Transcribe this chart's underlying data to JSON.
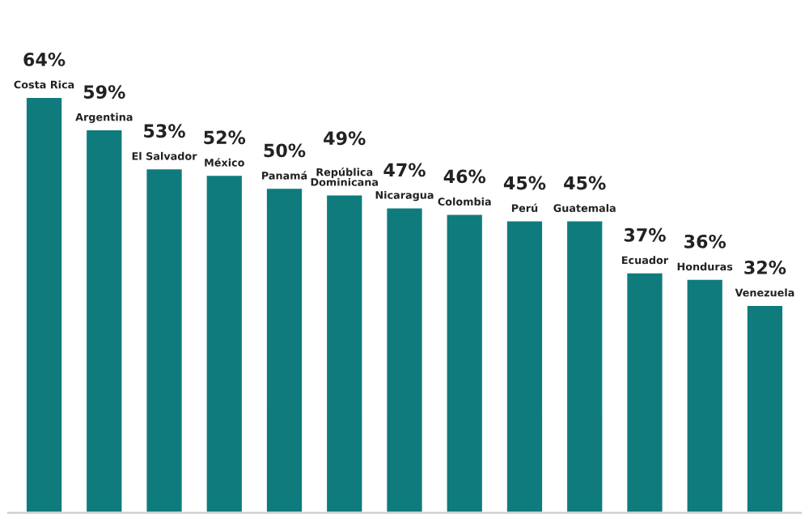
{
  "chart_data": {
    "type": "bar",
    "categories": [
      "Costa Rica",
      "Argentina",
      "El Salvador",
      "México",
      "Panamá",
      "República\nDominicana",
      "Nicaragua",
      "Colombia",
      "Perú",
      "Guatemala",
      "Ecuador",
      "Honduras",
      "Venezuela"
    ],
    "values": [
      64,
      59,
      53,
      52,
      50,
      49,
      47,
      46,
      45,
      45,
      37,
      36,
      32
    ],
    "value_labels": [
      "64%",
      "59%",
      "53%",
      "52%",
      "50%",
      "49%",
      "47%",
      "46%",
      "45%",
      "45%",
      "37%",
      "36%",
      "32%"
    ],
    "color": "#0f7b7c"
  }
}
